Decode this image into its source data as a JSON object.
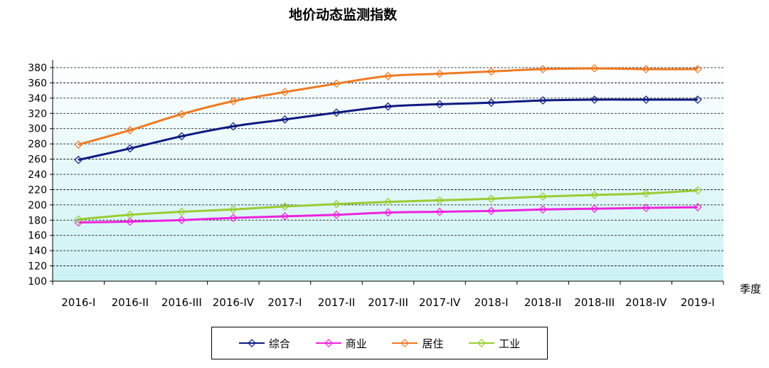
{
  "chart_data": {
    "type": "line",
    "title": "地价动态监测指数",
    "xlabel": "季度",
    "ylabel": "",
    "categories": [
      "2016-I",
      "2016-II",
      "2016-III",
      "2016-IV",
      "2017-I",
      "2017-II",
      "2017-III",
      "2017-IV",
      "2018-I",
      "2018-II",
      "2018-III",
      "2018-IV",
      "2019-I"
    ],
    "ylim": [
      100,
      380
    ],
    "yticks": [
      100,
      120,
      140,
      160,
      180,
      200,
      220,
      240,
      260,
      280,
      300,
      320,
      340,
      360,
      380
    ],
    "grid": true,
    "legend_position": "bottom",
    "series": [
      {
        "name": "综合",
        "color": "#0e1a80",
        "values": [
          259,
          274,
          290,
          303,
          312,
          321,
          329,
          332,
          334,
          337,
          338,
          338,
          338
        ]
      },
      {
        "name": "商业",
        "color": "#ee22dd",
        "values": [
          177,
          178,
          180,
          183,
          185,
          187,
          190,
          191,
          192,
          194,
          195,
          196,
          197
        ]
      },
      {
        "name": "居住",
        "color": "#ee7a22",
        "values": [
          279,
          298,
          319,
          336,
          348,
          359,
          369,
          372,
          375,
          378,
          379,
          378,
          378
        ]
      },
      {
        "name": "工业",
        "color": "#99cc33",
        "values": [
          181,
          187,
          191,
          194,
          198,
          201,
          204,
          206,
          208,
          211,
          213,
          215,
          219
        ]
      }
    ]
  }
}
